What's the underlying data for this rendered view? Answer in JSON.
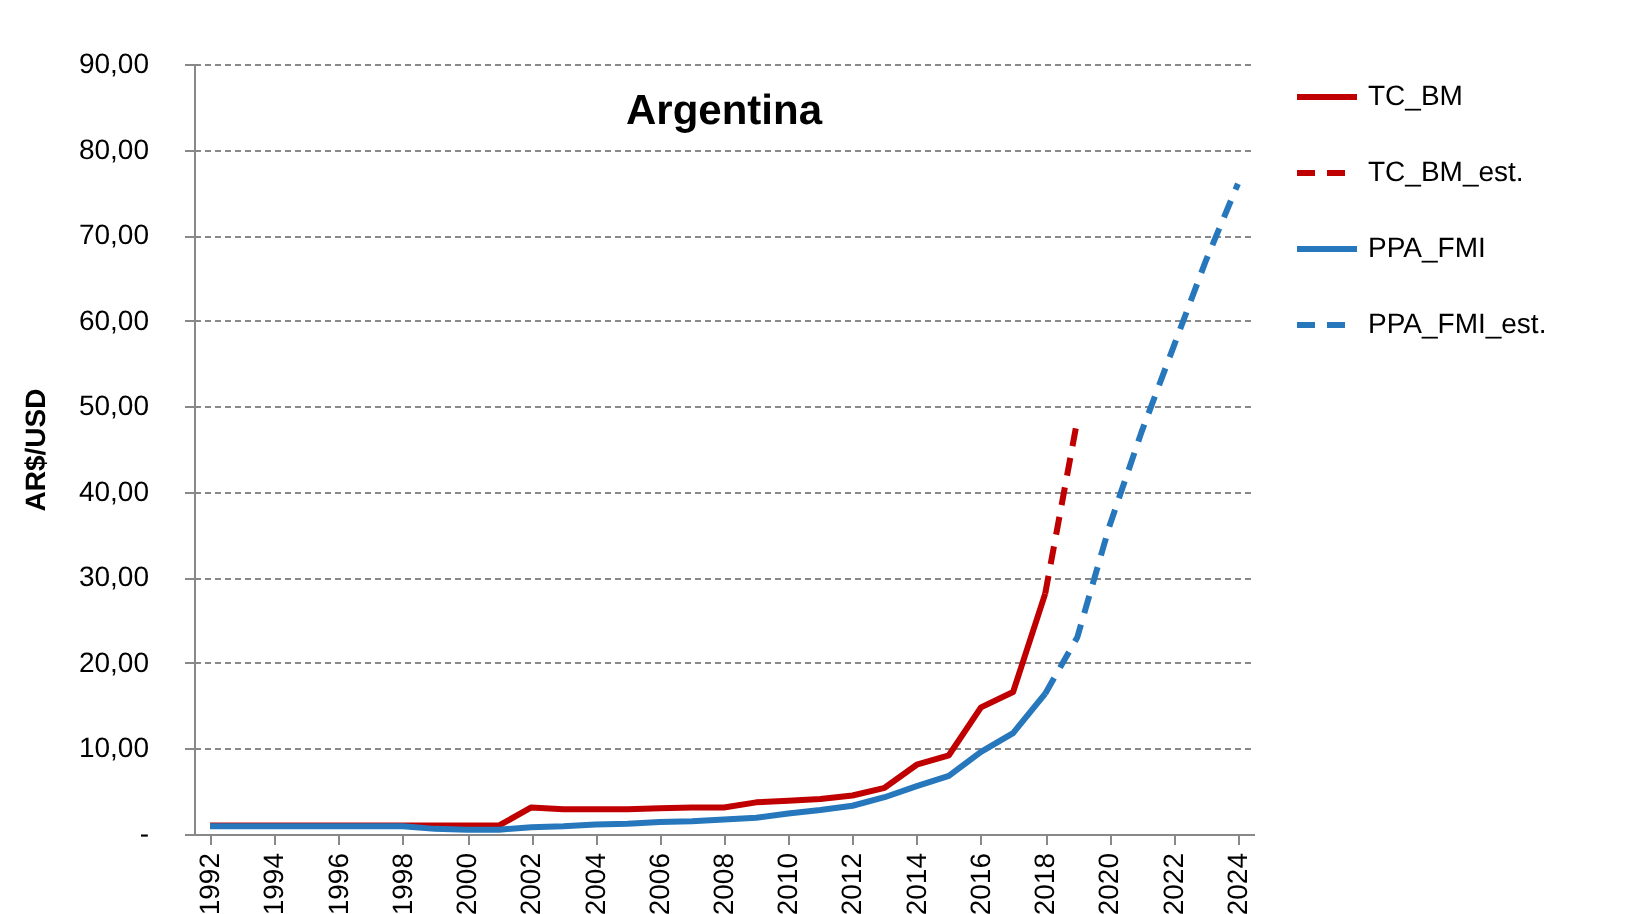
{
  "chart_data": {
    "type": "line",
    "title": "Argentina",
    "ylabel": "AR$/USD",
    "xlim": [
      1991.5,
      2024.5
    ],
    "xticks": [
      1992,
      1994,
      1996,
      1998,
      2000,
      2002,
      2004,
      2006,
      2008,
      2010,
      2012,
      2014,
      2016,
      2018,
      2020,
      2022,
      2024
    ],
    "ylim": [
      0,
      90
    ],
    "yticks": [
      {
        "value": 0,
        "label": "-"
      },
      {
        "value": 10,
        "label": "10,00"
      },
      {
        "value": 20,
        "label": "20,00"
      },
      {
        "value": 30,
        "label": "30,00"
      },
      {
        "value": 40,
        "label": "40,00"
      },
      {
        "value": 50,
        "label": "50,00"
      },
      {
        "value": 60,
        "label": "60,00"
      },
      {
        "value": 70,
        "label": "70,00"
      },
      {
        "value": 80,
        "label": "80,00"
      },
      {
        "value": 90,
        "label": "90,00"
      }
    ],
    "grid": "y",
    "legend": "right",
    "marker": "none",
    "series": [
      {
        "name": "TC_BM",
        "color": "#c00000",
        "line_style": "solid",
        "x": [
          1992,
          1993,
          1994,
          1995,
          1996,
          1997,
          1998,
          1999,
          2000,
          2001,
          2002,
          2003,
          2004,
          2005,
          2006,
          2007,
          2008,
          2009,
          2010,
          2011,
          2012,
          2013,
          2014,
          2015,
          2016,
          2017,
          2018
        ],
        "values": [
          1.0,
          1.0,
          1.0,
          1.0,
          1.0,
          1.0,
          1.0,
          1.0,
          1.0,
          1.0,
          3.1,
          2.9,
          2.9,
          2.9,
          3.0,
          3.1,
          3.1,
          3.7,
          3.9,
          4.1,
          4.5,
          5.4,
          8.1,
          9.2,
          14.8,
          16.6,
          28.1
        ]
      },
      {
        "name": "TC_BM_est.",
        "color": "#c00000",
        "line_style": "dashed",
        "x": [
          2018,
          2019
        ],
        "values": [
          28.1,
          48.4
        ]
      },
      {
        "name": "PPA_FMI",
        "color": "#2677bb",
        "line_style": "solid",
        "x": [
          1992,
          1993,
          1994,
          1995,
          1996,
          1997,
          1998,
          1999,
          2000,
          2001,
          2002,
          2003,
          2004,
          2005,
          2006,
          2007,
          2008,
          2009,
          2010,
          2011,
          2012,
          2013,
          2014,
          2015,
          2016,
          2017,
          2018
        ],
        "values": [
          0.9,
          0.9,
          0.9,
          0.9,
          0.9,
          0.9,
          0.9,
          0.6,
          0.5,
          0.5,
          0.8,
          0.9,
          1.1,
          1.2,
          1.4,
          1.5,
          1.7,
          1.9,
          2.4,
          2.8,
          3.3,
          4.3,
          5.6,
          6.8,
          9.6,
          11.8,
          16.4
        ]
      },
      {
        "name": "PPA_FMI_est.",
        "color": "#2677bb",
        "line_style": "dashed",
        "x": [
          2018,
          2019,
          2020,
          2021,
          2022,
          2023,
          2024
        ],
        "values": [
          16.4,
          23,
          36,
          47,
          57,
          67,
          76
        ]
      }
    ]
  }
}
